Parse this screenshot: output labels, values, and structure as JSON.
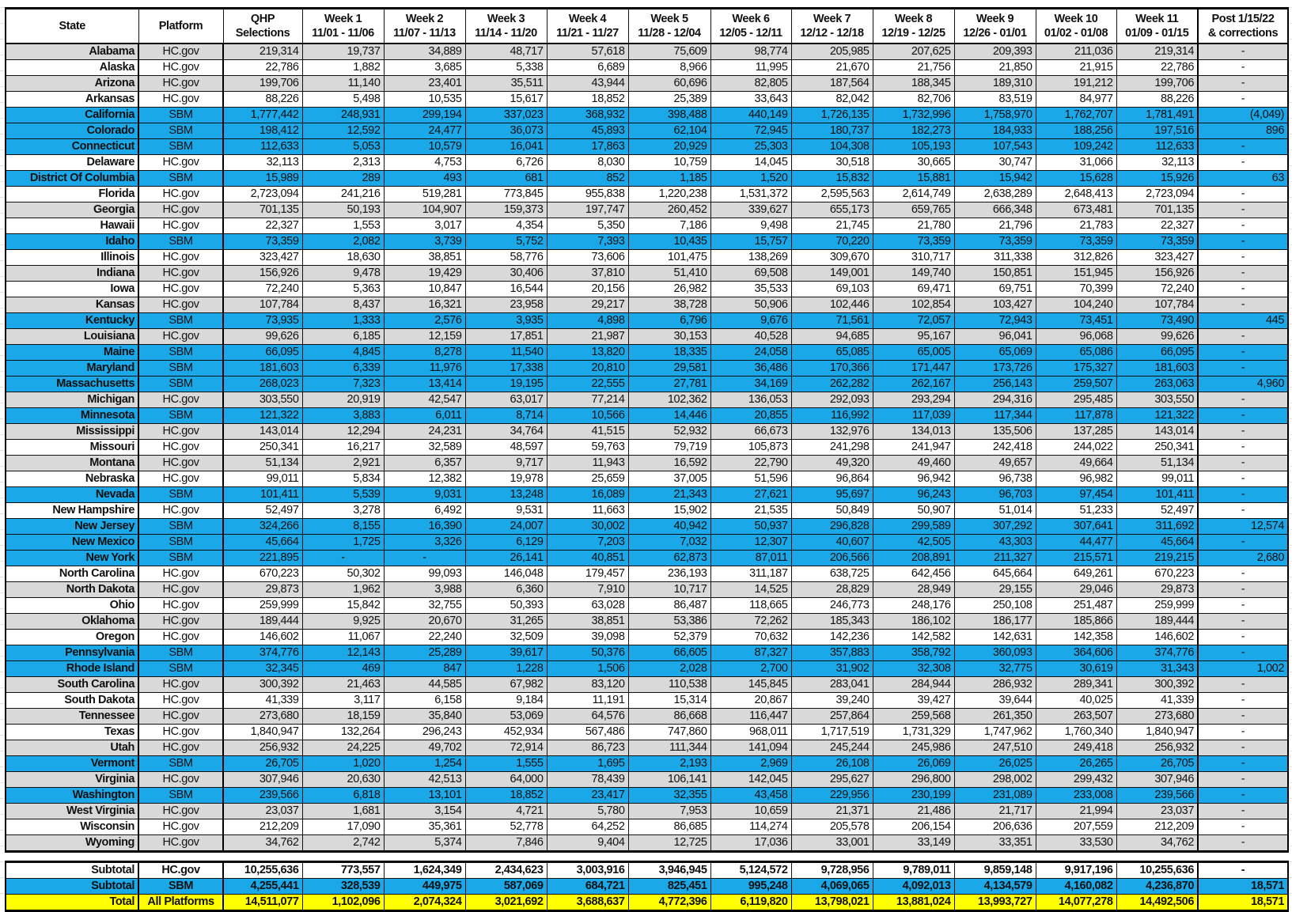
{
  "colors": {
    "sbm_row": "#1ba8e8",
    "alt_row": "#d9d9d9",
    "total_row": "#ffff00"
  },
  "header": [
    {
      "l1": "State",
      "l2": ""
    },
    {
      "l1": "Platform",
      "l2": ""
    },
    {
      "l1": "QHP",
      "l2": "Selections"
    },
    {
      "l1": "Week 1",
      "l2": "11/01 - 11/06"
    },
    {
      "l1": "Week 2",
      "l2": "11/07 - 11/13"
    },
    {
      "l1": "Week 3",
      "l2": "11/14 - 11/20"
    },
    {
      "l1": "Week 4",
      "l2": "11/21 - 11/27"
    },
    {
      "l1": "Week 5",
      "l2": "11/28 - 12/04"
    },
    {
      "l1": "Week 6",
      "l2": "12/05 - 12/11"
    },
    {
      "l1": "Week 7",
      "l2": "12/12 - 12/18"
    },
    {
      "l1": "Week 8",
      "l2": "12/19 - 12/25"
    },
    {
      "l1": "Week 9",
      "l2": "12/26 - 01/01"
    },
    {
      "l1": "Week 10",
      "l2": "01/02 - 01/08"
    },
    {
      "l1": "Week 11",
      "l2": "01/09 - 01/15"
    },
    {
      "l1": "Post 1/15/22",
      "l2": "& corrections"
    }
  ],
  "rows": [
    [
      "Alabama",
      "HC.gov",
      "219,314",
      "19,737",
      "34,889",
      "48,717",
      "57,618",
      "75,609",
      "98,774",
      "205,985",
      "207,625",
      "209,393",
      "211,036",
      "219,314",
      "-"
    ],
    [
      "Alaska",
      "HC.gov",
      "22,786",
      "1,882",
      "3,685",
      "5,338",
      "6,689",
      "8,966",
      "11,995",
      "21,670",
      "21,756",
      "21,850",
      "21,915",
      "22,786",
      "-"
    ],
    [
      "Arizona",
      "HC.gov",
      "199,706",
      "11,140",
      "23,401",
      "35,511",
      "43,944",
      "60,696",
      "82,805",
      "187,564",
      "188,345",
      "189,310",
      "191,212",
      "199,706",
      "-"
    ],
    [
      "Arkansas",
      "HC.gov",
      "88,226",
      "5,498",
      "10,535",
      "15,617",
      "18,852",
      "25,389",
      "33,643",
      "82,042",
      "82,706",
      "83,519",
      "84,977",
      "88,226",
      "-"
    ],
    [
      "California",
      "SBM",
      "1,777,442",
      "248,931",
      "299,194",
      "337,023",
      "368,932",
      "398,488",
      "440,149",
      "1,726,135",
      "1,732,996",
      "1,758,970",
      "1,762,707",
      "1,781,491",
      "(4,049)"
    ],
    [
      "Colorado",
      "SBM",
      "198,412",
      "12,592",
      "24,477",
      "36,073",
      "45,893",
      "62,104",
      "72,945",
      "180,737",
      "182,273",
      "184,933",
      "188,256",
      "197,516",
      "896"
    ],
    [
      "Connecticut",
      "SBM",
      "112,633",
      "5,053",
      "10,579",
      "16,041",
      "17,863",
      "20,929",
      "25,303",
      "104,308",
      "105,193",
      "107,543",
      "109,242",
      "112,633",
      "-"
    ],
    [
      "Delaware",
      "HC.gov",
      "32,113",
      "2,313",
      "4,753",
      "6,726",
      "8,030",
      "10,759",
      "14,045",
      "30,518",
      "30,665",
      "30,747",
      "31,066",
      "32,113",
      "-"
    ],
    [
      "District Of Columbia",
      "SBM",
      "15,989",
      "289",
      "493",
      "681",
      "852",
      "1,185",
      "1,520",
      "15,832",
      "15,881",
      "15,942",
      "15,628",
      "15,926",
      "63"
    ],
    [
      "Florida",
      "HC.gov",
      "2,723,094",
      "241,216",
      "519,281",
      "773,845",
      "955,838",
      "1,220,238",
      "1,531,372",
      "2,595,563",
      "2,614,749",
      "2,638,289",
      "2,648,413",
      "2,723,094",
      "-"
    ],
    [
      "Georgia",
      "HC.gov",
      "701,135",
      "50,193",
      "104,907",
      "159,373",
      "197,747",
      "260,452",
      "339,627",
      "655,173",
      "659,765",
      "666,348",
      "673,481",
      "701,135",
      "-"
    ],
    [
      "Hawaii",
      "HC.gov",
      "22,327",
      "1,553",
      "3,017",
      "4,354",
      "5,350",
      "7,186",
      "9,498",
      "21,745",
      "21,780",
      "21,796",
      "21,783",
      "22,327",
      "-"
    ],
    [
      "Idaho",
      "SBM",
      "73,359",
      "2,082",
      "3,739",
      "5,752",
      "7,393",
      "10,435",
      "15,757",
      "70,220",
      "73,359",
      "73,359",
      "73,359",
      "73,359",
      "-"
    ],
    [
      "Illinois",
      "HC.gov",
      "323,427",
      "18,630",
      "38,851",
      "58,776",
      "73,606",
      "101,475",
      "138,269",
      "309,670",
      "310,717",
      "311,338",
      "312,826",
      "323,427",
      "-"
    ],
    [
      "Indiana",
      "HC.gov",
      "156,926",
      "9,478",
      "19,429",
      "30,406",
      "37,810",
      "51,410",
      "69,508",
      "149,001",
      "149,740",
      "150,851",
      "151,945",
      "156,926",
      "-"
    ],
    [
      "Iowa",
      "HC.gov",
      "72,240",
      "5,363",
      "10,847",
      "16,544",
      "20,156",
      "26,982",
      "35,533",
      "69,103",
      "69,471",
      "69,751",
      "70,399",
      "72,240",
      "-"
    ],
    [
      "Kansas",
      "HC.gov",
      "107,784",
      "8,437",
      "16,321",
      "23,958",
      "29,217",
      "38,728",
      "50,906",
      "102,446",
      "102,854",
      "103,427",
      "104,240",
      "107,784",
      "-"
    ],
    [
      "Kentucky",
      "SBM",
      "73,935",
      "1,333",
      "2,576",
      "3,935",
      "4,898",
      "6,796",
      "9,676",
      "71,561",
      "72,057",
      "72,943",
      "73,451",
      "73,490",
      "445"
    ],
    [
      "Louisiana",
      "HC.gov",
      "99,626",
      "6,185",
      "12,159",
      "17,851",
      "21,987",
      "30,153",
      "40,528",
      "94,685",
      "95,167",
      "96,041",
      "96,068",
      "99,626",
      "-"
    ],
    [
      "Maine",
      "SBM",
      "66,095",
      "4,845",
      "8,278",
      "11,540",
      "13,820",
      "18,335",
      "24,058",
      "65,085",
      "65,005",
      "65,069",
      "65,086",
      "66,095",
      "-"
    ],
    [
      "Maryland",
      "SBM",
      "181,603",
      "6,339",
      "11,976",
      "17,338",
      "20,810",
      "29,581",
      "36,486",
      "170,366",
      "171,447",
      "173,726",
      "175,327",
      "181,603",
      "-"
    ],
    [
      "Massachusetts",
      "SBM",
      "268,023",
      "7,323",
      "13,414",
      "19,195",
      "22,555",
      "27,781",
      "34,169",
      "262,282",
      "262,167",
      "256,143",
      "259,507",
      "263,063",
      "4,960"
    ],
    [
      "Michigan",
      "HC.gov",
      "303,550",
      "20,919",
      "42,547",
      "63,017",
      "77,214",
      "102,362",
      "136,053",
      "292,093",
      "293,294",
      "294,316",
      "295,485",
      "303,550",
      "-"
    ],
    [
      "Minnesota",
      "SBM",
      "121,322",
      "3,883",
      "6,011",
      "8,714",
      "10,566",
      "14,446",
      "20,855",
      "116,992",
      "117,039",
      "117,344",
      "117,878",
      "121,322",
      "-"
    ],
    [
      "Mississippi",
      "HC.gov",
      "143,014",
      "12,294",
      "24,231",
      "34,764",
      "41,515",
      "52,932",
      "66,673",
      "132,976",
      "134,013",
      "135,506",
      "137,285",
      "143,014",
      "-"
    ],
    [
      "Missouri",
      "HC.gov",
      "250,341",
      "16,217",
      "32,589",
      "48,597",
      "59,763",
      "79,719",
      "105,873",
      "241,298",
      "241,947",
      "242,418",
      "244,022",
      "250,341",
      "-"
    ],
    [
      "Montana",
      "HC.gov",
      "51,134",
      "2,921",
      "6,357",
      "9,717",
      "11,943",
      "16,592",
      "22,790",
      "49,320",
      "49,460",
      "49,657",
      "49,664",
      "51,134",
      "-"
    ],
    [
      "Nebraska",
      "HC.gov",
      "99,011",
      "5,834",
      "12,382",
      "19,978",
      "25,659",
      "37,005",
      "51,596",
      "96,864",
      "96,942",
      "96,738",
      "96,982",
      "99,011",
      "-"
    ],
    [
      "Nevada",
      "SBM",
      "101,411",
      "5,539",
      "9,031",
      "13,248",
      "16,089",
      "21,343",
      "27,621",
      "95,697",
      "96,243",
      "96,703",
      "97,454",
      "101,411",
      "-"
    ],
    [
      "New Hampshire",
      "HC.gov",
      "52,497",
      "3,278",
      "6,492",
      "9,531",
      "11,663",
      "15,902",
      "21,535",
      "50,849",
      "50,907",
      "51,014",
      "51,233",
      "52,497",
      "-"
    ],
    [
      "New Jersey",
      "SBM",
      "324,266",
      "8,155",
      "16,390",
      "24,007",
      "30,002",
      "40,942",
      "50,937",
      "296,828",
      "299,589",
      "307,292",
      "307,641",
      "311,692",
      "12,574"
    ],
    [
      "New Mexico",
      "SBM",
      "45,664",
      "1,725",
      "3,326",
      "6,129",
      "7,203",
      "7,032",
      "12,307",
      "40,607",
      "42,505",
      "43,303",
      "44,477",
      "45,664",
      "-"
    ],
    [
      "New York",
      "SBM",
      "221,895",
      "-",
      "-",
      "26,141",
      "40,851",
      "62,873",
      "87,011",
      "206,566",
      "208,891",
      "211,327",
      "215,571",
      "219,215",
      "2,680"
    ],
    [
      "North Carolina",
      "HC.gov",
      "670,223",
      "50,302",
      "99,093",
      "146,048",
      "179,457",
      "236,193",
      "311,187",
      "638,725",
      "642,456",
      "645,664",
      "649,261",
      "670,223",
      "-"
    ],
    [
      "North Dakota",
      "HC.gov",
      "29,873",
      "1,962",
      "3,988",
      "6,360",
      "7,910",
      "10,717",
      "14,525",
      "28,829",
      "28,949",
      "29,155",
      "29,046",
      "29,873",
      "-"
    ],
    [
      "Ohio",
      "HC.gov",
      "259,999",
      "15,842",
      "32,755",
      "50,393",
      "63,028",
      "86,487",
      "118,665",
      "246,773",
      "248,176",
      "250,108",
      "251,487",
      "259,999",
      "-"
    ],
    [
      "Oklahoma",
      "HC.gov",
      "189,444",
      "9,925",
      "20,670",
      "31,265",
      "38,851",
      "53,386",
      "72,262",
      "185,343",
      "186,102",
      "186,177",
      "185,866",
      "189,444",
      "-"
    ],
    [
      "Oregon",
      "HC.gov",
      "146,602",
      "11,067",
      "22,240",
      "32,509",
      "39,098",
      "52,379",
      "70,632",
      "142,236",
      "142,582",
      "142,631",
      "142,358",
      "146,602",
      "-"
    ],
    [
      "Pennsylvania",
      "SBM",
      "374,776",
      "12,143",
      "25,289",
      "39,617",
      "50,376",
      "66,605",
      "87,327",
      "357,883",
      "358,792",
      "360,093",
      "364,606",
      "374,776",
      "-"
    ],
    [
      "Rhode Island",
      "SBM",
      "32,345",
      "469",
      "847",
      "1,228",
      "1,506",
      "2,028",
      "2,700",
      "31,902",
      "32,308",
      "32,775",
      "30,619",
      "31,343",
      "1,002"
    ],
    [
      "South Carolina",
      "HC.gov",
      "300,392",
      "21,463",
      "44,585",
      "67,982",
      "83,120",
      "110,538",
      "145,845",
      "283,041",
      "284,944",
      "286,932",
      "289,341",
      "300,392",
      "-"
    ],
    [
      "South Dakota",
      "HC.gov",
      "41,339",
      "3,117",
      "6,158",
      "9,184",
      "11,191",
      "15,314",
      "20,867",
      "39,240",
      "39,427",
      "39,644",
      "40,025",
      "41,339",
      "-"
    ],
    [
      "Tennessee",
      "HC.gov",
      "273,680",
      "18,159",
      "35,840",
      "53,069",
      "64,576",
      "86,668",
      "116,447",
      "257,864",
      "259,568",
      "261,350",
      "263,507",
      "273,680",
      "-"
    ],
    [
      "Texas",
      "HC.gov",
      "1,840,947",
      "132,264",
      "296,243",
      "452,934",
      "567,486",
      "747,860",
      "968,011",
      "1,717,519",
      "1,731,329",
      "1,747,962",
      "1,760,340",
      "1,840,947",
      "-"
    ],
    [
      "Utah",
      "HC.gov",
      "256,932",
      "24,225",
      "49,702",
      "72,914",
      "86,723",
      "111,344",
      "141,094",
      "245,244",
      "245,986",
      "247,510",
      "249,418",
      "256,932",
      "-"
    ],
    [
      "Vermont",
      "SBM",
      "26,705",
      "1,020",
      "1,254",
      "1,555",
      "1,695",
      "2,193",
      "2,969",
      "26,108",
      "26,069",
      "26,025",
      "26,265",
      "26,705",
      "-"
    ],
    [
      "Virginia",
      "HC.gov",
      "307,946",
      "20,630",
      "42,513",
      "64,000",
      "78,439",
      "106,141",
      "142,045",
      "295,627",
      "296,800",
      "298,002",
      "299,432",
      "307,946",
      "-"
    ],
    [
      "Washington",
      "SBM",
      "239,566",
      "6,818",
      "13,101",
      "18,852",
      "23,417",
      "32,355",
      "43,458",
      "229,956",
      "230,199",
      "231,089",
      "233,008",
      "239,566",
      "-"
    ],
    [
      "West Virginia",
      "HC.gov",
      "23,037",
      "1,681",
      "3,154",
      "4,721",
      "5,780",
      "7,953",
      "10,659",
      "21,371",
      "21,486",
      "21,717",
      "21,994",
      "23,037",
      "-"
    ],
    [
      "Wisconsin",
      "HC.gov",
      "212,209",
      "17,090",
      "35,361",
      "52,778",
      "64,252",
      "86,685",
      "114,274",
      "205,578",
      "206,154",
      "206,636",
      "207,559",
      "212,209",
      "-"
    ],
    [
      "Wyoming",
      "HC.gov",
      "34,762",
      "2,742",
      "5,374",
      "7,846",
      "9,404",
      "12,725",
      "17,036",
      "33,001",
      "33,149",
      "33,351",
      "33,530",
      "34,762",
      "-"
    ]
  ],
  "totals": [
    [
      "Subtotal",
      "HC.gov",
      "10,255,636",
      "773,557",
      "1,624,349",
      "2,434,623",
      "3,003,916",
      "3,946,945",
      "5,124,572",
      "9,728,956",
      "9,789,011",
      "9,859,148",
      "9,917,196",
      "10,255,636",
      "-"
    ],
    [
      "Subtotal",
      "SBM",
      "4,255,441",
      "328,539",
      "449,975",
      "587,069",
      "684,721",
      "825,451",
      "995,248",
      "4,069,065",
      "4,092,013",
      "4,134,579",
      "4,160,082",
      "4,236,870",
      "18,571"
    ],
    [
      "Total",
      "All Platforms",
      "14,511,077",
      "1,102,096",
      "2,074,324",
      "3,021,692",
      "3,688,637",
      "4,772,396",
      "6,119,820",
      "13,798,021",
      "13,881,024",
      "13,993,727",
      "14,077,278",
      "14,492,506",
      "18,571"
    ]
  ]
}
